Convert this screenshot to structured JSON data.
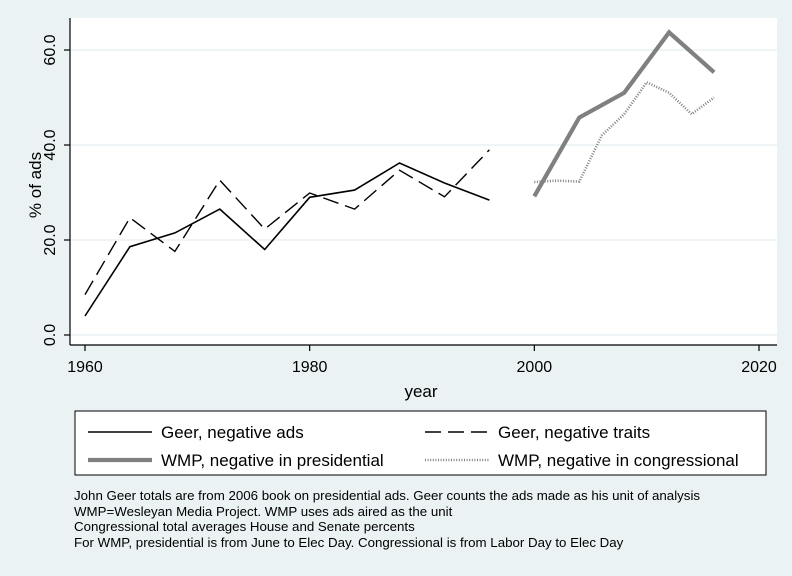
{
  "chart_data": {
    "type": "line",
    "xlabel": "year",
    "ylabel": "% of ads",
    "xlim": [
      1960,
      2020
    ],
    "ylim": [
      0,
      60
    ],
    "xticks": [
      1960,
      1980,
      2000,
      2020
    ],
    "xtick_labels": [
      "1960",
      "1980",
      "2000",
      "2020"
    ],
    "yticks": [
      0,
      20,
      40,
      60
    ],
    "ytick_labels": [
      "0.0",
      "20.0",
      "40.0",
      "60.0"
    ],
    "grid": "horizontal",
    "legend_position": "bottom",
    "series": [
      {
        "name": "Geer, negative ads",
        "style": "solid-thin",
        "color": "#000000",
        "x": [
          1960,
          1964,
          1968,
          1972,
          1976,
          1980,
          1984,
          1988,
          1992,
          1996
        ],
        "y": [
          4,
          18.6,
          21.5,
          26.5,
          18,
          29,
          30.5,
          36.2,
          32,
          28.4
        ]
      },
      {
        "name": "Geer, negative traits",
        "style": "dashed",
        "color": "#000000",
        "x": [
          1960,
          1964,
          1968,
          1972,
          1976,
          1980,
          1984,
          1988,
          1992,
          1996
        ],
        "y": [
          8.5,
          24.7,
          17.6,
          32.6,
          22.3,
          29.9,
          26.5,
          34.7,
          29.1,
          39
        ]
      },
      {
        "name": "WMP, negative in presidential",
        "style": "solid-thick",
        "color": "#808080",
        "x": [
          2000,
          2004,
          2008,
          2012,
          2016
        ],
        "y": [
          29.2,
          45.8,
          51,
          63.7,
          55.3
        ]
      },
      {
        "name": "WMP, negative in congressional",
        "style": "dotted",
        "color": "#808080",
        "x": [
          2000,
          2002,
          2004,
          2006,
          2008,
          2010,
          2012,
          2014,
          2016
        ],
        "y": [
          32.2,
          32.5,
          32.3,
          42,
          46.5,
          53.2,
          51,
          46.5,
          50
        ]
      }
    ]
  },
  "notes": [
    "John Geer totals are from 2006 book on presidential ads. Geer counts the ads made as his unit of analysis",
    "WMP=Wesleyan Media Project. WMP uses ads aired as the unit",
    "Congressional total averages House and Senate percents",
    "For WMP, presidential is from June to Elec Day. Congressional is from Labor Day to Elec Day"
  ]
}
